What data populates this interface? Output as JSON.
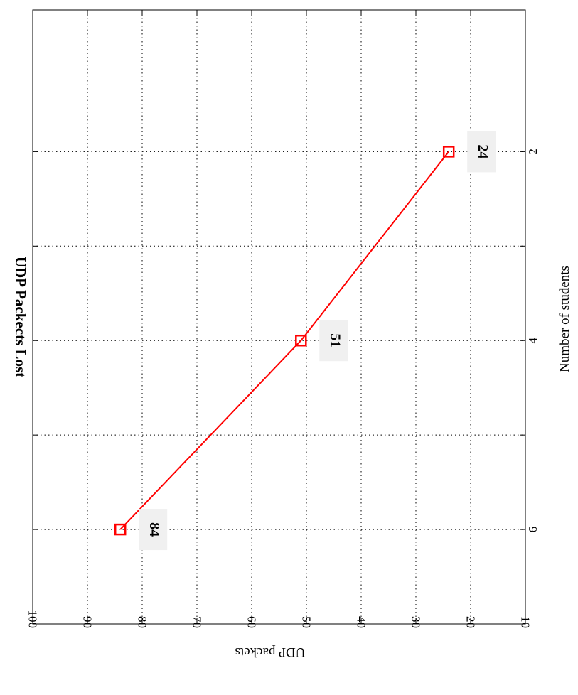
{
  "chart_data": {
    "type": "line",
    "title": "UDP Packects Lost",
    "xlabel": "Number of students",
    "ylabel": "UDP packets",
    "x": [
      2,
      4,
      6
    ],
    "series": [
      {
        "values": [
          24,
          51,
          84
        ],
        "labels": [
          "24",
          "51",
          "84"
        ],
        "color": "#ff0000",
        "marker": "square"
      }
    ],
    "xlim": [
      0.5,
      7
    ],
    "ylim": [
      10,
      100
    ],
    "xticks": [
      2,
      3,
      4,
      5,
      6
    ],
    "xtick_labels": [
      "2",
      "",
      "4",
      "",
      "6"
    ],
    "yticks": [
      10,
      20,
      30,
      40,
      50,
      60,
      70,
      80,
      90,
      100
    ],
    "grid": true,
    "orientation": "rotated-90-clockwise"
  }
}
